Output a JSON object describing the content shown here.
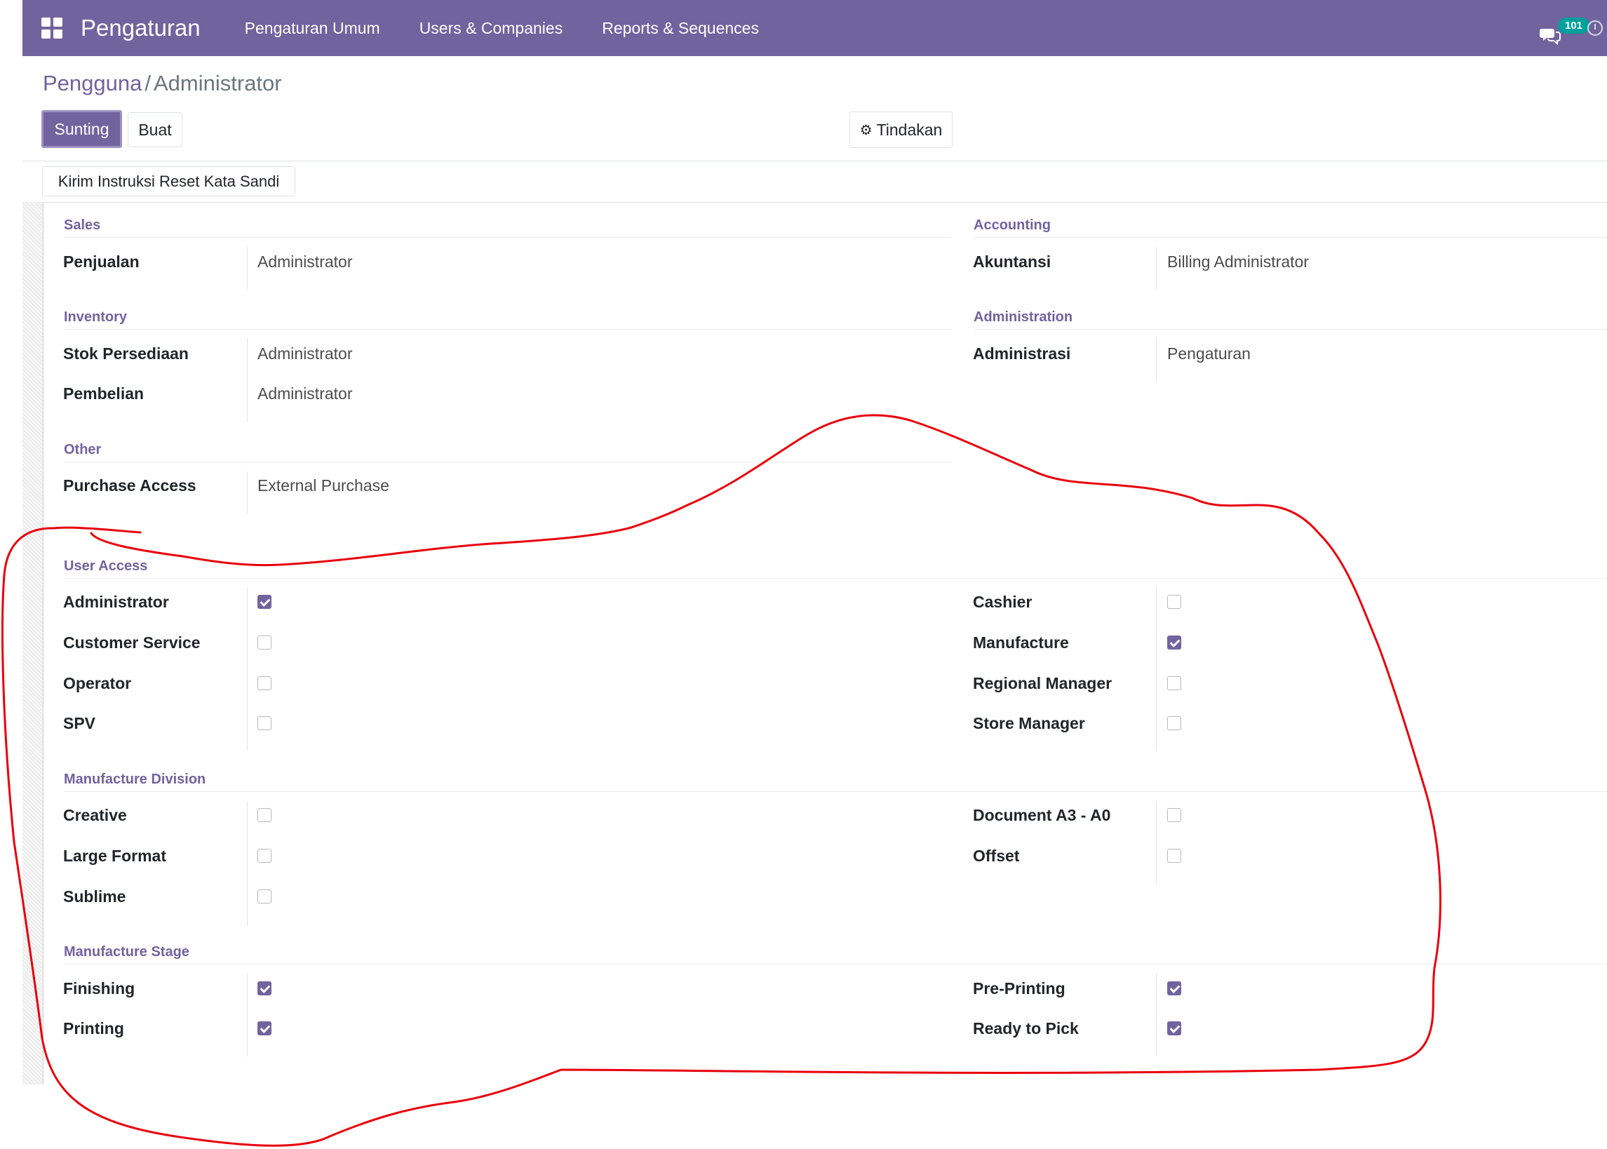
{
  "navbar": {
    "brand": "Pengaturan",
    "menu": [
      "Pengaturan Umum",
      "Users & Companies",
      "Reports & Sequences"
    ],
    "messages_count": "101",
    "color": "#71639e"
  },
  "breadcrumb": {
    "parent": "Pengguna",
    "separator": "/",
    "current": "Administrator"
  },
  "buttons": {
    "edit": "Sunting",
    "create": "Buat",
    "action": "Tindakan",
    "reset_password": "Kirim Instruksi Reset Kata Sandi"
  },
  "groups": {
    "sales": {
      "title": "Sales",
      "field_label": "Penjualan",
      "field_value": "Administrator"
    },
    "accounting": {
      "title": "Accounting",
      "field_label": "Akuntansi",
      "field_value": "Billing Administrator"
    },
    "inventory": {
      "title": "Inventory",
      "fields": [
        {
          "label": "Stok Persediaan",
          "value": "Administrator"
        },
        {
          "label": "Pembelian",
          "value": "Administrator"
        }
      ]
    },
    "administration": {
      "title": "Administration",
      "field_label": "Administrasi",
      "field_value": "Pengaturan"
    },
    "other": {
      "title": "Other",
      "field_label": "Purchase Access",
      "field_value": "External Purchase"
    },
    "user_access": {
      "title": "User Access",
      "left": [
        {
          "label": "Administrator",
          "checked": true
        },
        {
          "label": "Customer Service",
          "checked": false
        },
        {
          "label": "Operator",
          "checked": false
        },
        {
          "label": "SPV",
          "checked": false
        }
      ],
      "right": [
        {
          "label": "Cashier",
          "checked": false
        },
        {
          "label": "Manufacture",
          "checked": true
        },
        {
          "label": "Regional Manager",
          "checked": false
        },
        {
          "label": "Store Manager",
          "checked": false
        }
      ]
    },
    "manufacture_division": {
      "title": "Manufacture Division",
      "left": [
        {
          "label": "Creative",
          "checked": false
        },
        {
          "label": "Large Format",
          "checked": false
        },
        {
          "label": "Sublime",
          "checked": false
        }
      ],
      "right": [
        {
          "label": "Document A3 - A0",
          "checked": false
        },
        {
          "label": "Offset",
          "checked": false
        }
      ]
    },
    "manufacture_stage": {
      "title": "Manufacture Stage",
      "left": [
        {
          "label": "Finishing",
          "checked": true
        },
        {
          "label": "Printing",
          "checked": true
        }
      ],
      "right": [
        {
          "label": "Pre-Printing",
          "checked": true
        },
        {
          "label": "Ready to Pick",
          "checked": true
        }
      ]
    }
  },
  "annotation_color": "#e8000b"
}
